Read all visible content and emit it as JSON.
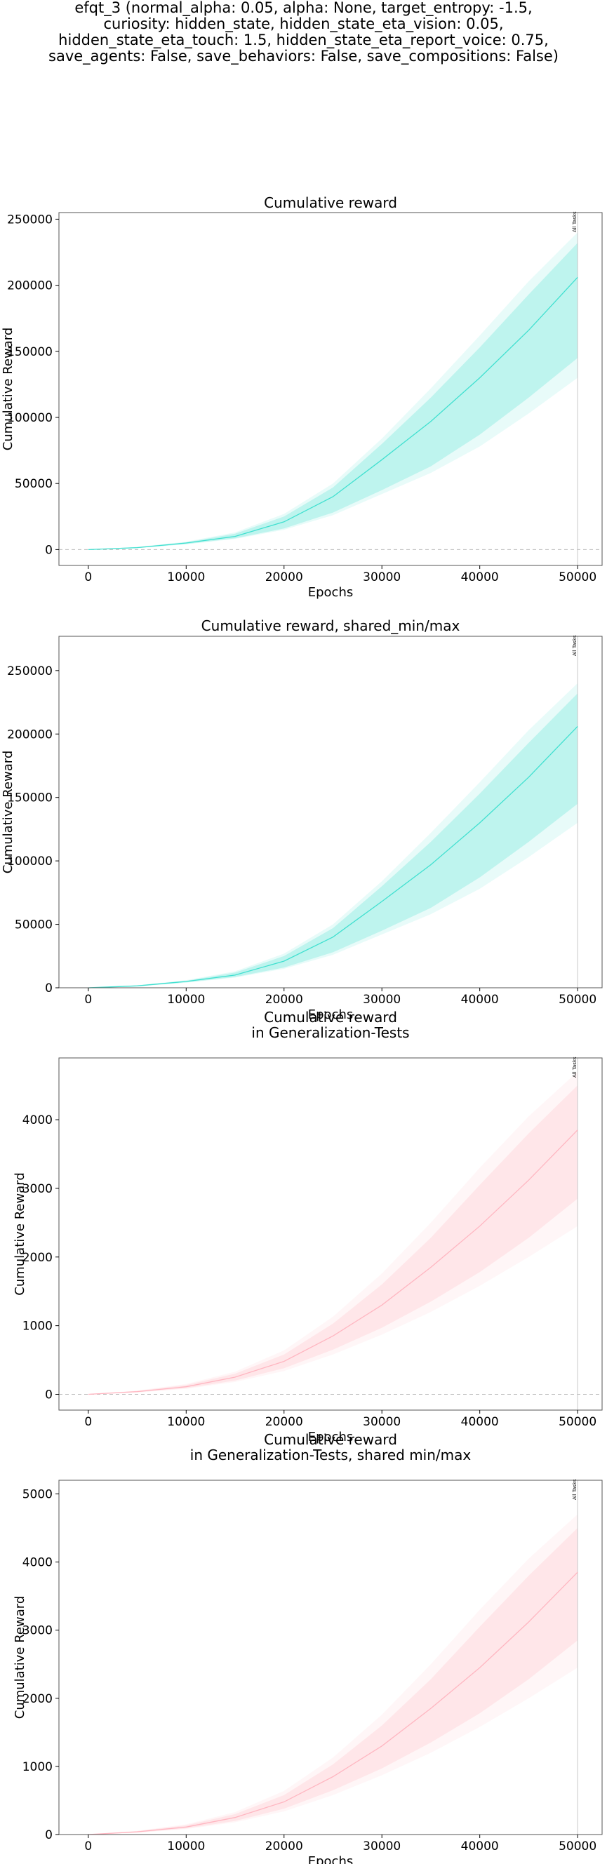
{
  "figure": {
    "suptitle_lines": [
      "efqt_3 (normal_alpha: 0.05, alpha: None, target_entropy: -1.5,",
      "curiosity: hidden_state, hidden_state_eta_vision: 0.05,",
      "hidden_state_eta_touch: 1.5, hidden_state_eta_report_voice: 0.75,",
      "save_agents: False, save_behaviors: False, save_compositions: False)"
    ]
  },
  "chart_data": [
    {
      "type": "line",
      "title": [
        "Cumulative reward"
      ],
      "xlabel": "Epochs",
      "ylabel": "Cumulative Reward",
      "xlim": [
        -3000,
        52500
      ],
      "ylim": [
        -12000,
        255000
      ],
      "xticks": [
        0,
        10000,
        20000,
        30000,
        40000,
        50000
      ],
      "yticks": [
        0,
        50000,
        100000,
        150000,
        200000,
        250000
      ],
      "hline_dashed": 0,
      "vline_x": 50000,
      "vline_label": "All Tasks",
      "color": "#40e0d0",
      "x": [
        0,
        5000,
        10000,
        15000,
        20000,
        25000,
        30000,
        35000,
        40000,
        45000,
        50000
      ],
      "series": [
        {
          "role": "mean",
          "values": [
            0,
            1500,
            5000,
            10000,
            21000,
            40000,
            68000,
            97000,
            130000,
            166000,
            206000
          ]
        },
        {
          "role": "band_lower",
          "values": [
            0,
            1200,
            4200,
            8500,
            16000,
            28000,
            45000,
            63000,
            87000,
            115000,
            145000
          ]
        },
        {
          "role": "band_upper",
          "values": [
            0,
            1900,
            5500,
            12000,
            25000,
            47000,
            80000,
            115000,
            153000,
            193000,
            232000
          ]
        },
        {
          "role": "outer_lower",
          "values": [
            0,
            1100,
            4000,
            8000,
            15000,
            26000,
            42000,
            58000,
            78000,
            103000,
            130000
          ]
        },
        {
          "role": "outer_upper",
          "values": [
            0,
            2000,
            6000,
            13000,
            27000,
            50000,
            84000,
            122000,
            162000,
            203000,
            240000
          ]
        }
      ]
    },
    {
      "type": "line",
      "title": [
        "Cumulative reward, shared_min/max"
      ],
      "xlabel": "Epochs",
      "ylabel": "Cumulative Reward",
      "xlim": [
        -3000,
        52500
      ],
      "ylim": [
        0,
        277000
      ],
      "xticks": [
        0,
        10000,
        20000,
        30000,
        40000,
        50000
      ],
      "yticks": [
        0,
        50000,
        100000,
        150000,
        200000,
        250000
      ],
      "hline_dashed": null,
      "vline_x": 50000,
      "vline_label": "All Tasks",
      "color": "#40e0d0",
      "x": [
        0,
        5000,
        10000,
        15000,
        20000,
        25000,
        30000,
        35000,
        40000,
        45000,
        50000
      ],
      "series": [
        {
          "role": "mean",
          "values": [
            0,
            1500,
            5000,
            10000,
            21000,
            40000,
            68000,
            97000,
            130000,
            166000,
            206000
          ]
        },
        {
          "role": "band_lower",
          "values": [
            0,
            1200,
            4200,
            8500,
            16000,
            28000,
            45000,
            63000,
            87000,
            115000,
            145000
          ]
        },
        {
          "role": "band_upper",
          "values": [
            0,
            1900,
            5500,
            12000,
            25000,
            47000,
            80000,
            115000,
            153000,
            193000,
            232000
          ]
        },
        {
          "role": "outer_lower",
          "values": [
            0,
            1100,
            4000,
            8000,
            15000,
            26000,
            42000,
            58000,
            78000,
            103000,
            130000
          ]
        },
        {
          "role": "outer_upper",
          "values": [
            0,
            2000,
            6000,
            13000,
            27000,
            50000,
            84000,
            122000,
            162000,
            203000,
            240000
          ]
        }
      ]
    },
    {
      "type": "line",
      "title": [
        "Cumulative reward",
        "in Generalization-Tests"
      ],
      "xlabel": "Epochs",
      "ylabel": "Cumulative Reward",
      "xlim": [
        -3000,
        52500
      ],
      "ylim": [
        -230,
        4900
      ],
      "xticks": [
        0,
        10000,
        20000,
        30000,
        40000,
        50000
      ],
      "yticks": [
        0,
        1000,
        2000,
        3000,
        4000
      ],
      "hline_dashed": 0,
      "vline_x": 50000,
      "vline_label": "All Tasks",
      "color": "#ffb6c1",
      "x": [
        0,
        5000,
        10000,
        15000,
        20000,
        25000,
        30000,
        35000,
        40000,
        45000,
        50000
      ],
      "series": [
        {
          "role": "mean",
          "values": [
            0,
            40,
            110,
            250,
            480,
            850,
            1300,
            1850,
            2450,
            3120,
            3850
          ]
        },
        {
          "role": "band_lower",
          "values": [
            0,
            30,
            90,
            200,
            380,
            650,
            970,
            1350,
            1780,
            2280,
            2850
          ]
        },
        {
          "role": "band_upper",
          "values": [
            0,
            50,
            135,
            300,
            580,
            1030,
            1600,
            2280,
            3050,
            3800,
            4500
          ]
        },
        {
          "role": "outer_lower",
          "values": [
            0,
            25,
            80,
            180,
            340,
            580,
            870,
            1200,
            1580,
            2000,
            2450
          ]
        },
        {
          "role": "outer_upper",
          "values": [
            0,
            55,
            150,
            330,
            640,
            1130,
            1760,
            2500,
            3300,
            4050,
            4700
          ]
        }
      ]
    },
    {
      "type": "line",
      "title": [
        "Cumulative reward",
        "in Generalization-Tests, shared min/max"
      ],
      "xlabel": "Epochs",
      "ylabel": "Cumulative Reward",
      "xlim": [
        -3000,
        52500
      ],
      "ylim": [
        0,
        5200
      ],
      "xticks": [
        0,
        10000,
        20000,
        30000,
        40000,
        50000
      ],
      "yticks": [
        0,
        1000,
        2000,
        3000,
        4000,
        5000
      ],
      "hline_dashed": null,
      "vline_x": 50000,
      "vline_label": "All Tasks",
      "color": "#ffb6c1",
      "x": [
        0,
        5000,
        10000,
        15000,
        20000,
        25000,
        30000,
        35000,
        40000,
        45000,
        50000
      ],
      "series": [
        {
          "role": "mean",
          "values": [
            0,
            40,
            110,
            250,
            480,
            850,
            1300,
            1850,
            2450,
            3120,
            3850
          ]
        },
        {
          "role": "band_lower",
          "values": [
            0,
            30,
            90,
            200,
            380,
            650,
            970,
            1350,
            1780,
            2280,
            2850
          ]
        },
        {
          "role": "band_upper",
          "values": [
            0,
            50,
            135,
            300,
            580,
            1030,
            1600,
            2280,
            3050,
            3800,
            4500
          ]
        },
        {
          "role": "outer_lower",
          "values": [
            0,
            25,
            80,
            180,
            340,
            580,
            870,
            1200,
            1580,
            2000,
            2450
          ]
        },
        {
          "role": "outer_upper",
          "values": [
            0,
            55,
            150,
            330,
            640,
            1130,
            1760,
            2500,
            3300,
            4050,
            4700
          ]
        }
      ]
    }
  ]
}
